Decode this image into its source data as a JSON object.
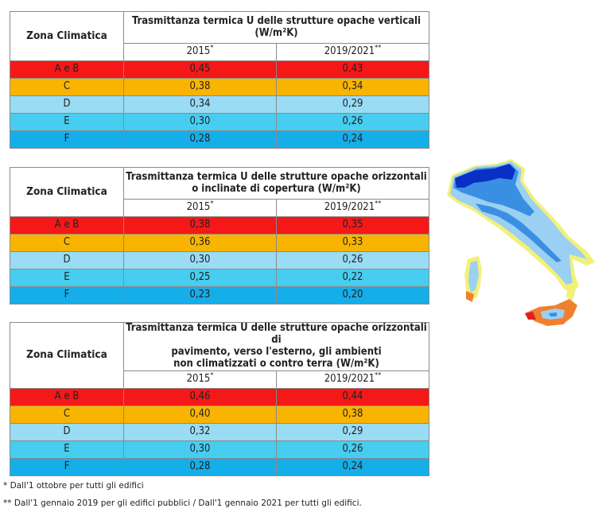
{
  "zone_header": "Zona Climatica",
  "col_2015": "2015",
  "col_2019": "2019/2021",
  "mark_2015": "*",
  "mark_2019": "**",
  "tables": [
    {
      "title_lines": [
        "Trasmittanza termica U delle strutture opache verticali",
        "(W/m²K)"
      ],
      "rows": [
        {
          "zone": "A e B",
          "v2015": "0,45",
          "v2019": "0,43"
        },
        {
          "zone": "C",
          "v2015": "0,38",
          "v2019": "0,34"
        },
        {
          "zone": "D",
          "v2015": "0,34",
          "v2019": "0,29"
        },
        {
          "zone": "E",
          "v2015": "0,30",
          "v2019": "0,26"
        },
        {
          "zone": "F",
          "v2015": "0,28",
          "v2019": "0,24"
        }
      ]
    },
    {
      "title_lines": [
        "Trasmittanza termica U delle strutture opache orizzontali",
        "o inclinate di copertura (W/m²K)"
      ],
      "rows": [
        {
          "zone": "A e B",
          "v2015": "0,38",
          "v2019": "0,35"
        },
        {
          "zone": "C",
          "v2015": "0,36",
          "v2019": "0,33"
        },
        {
          "zone": "D",
          "v2015": "0,30",
          "v2019": "0,26"
        },
        {
          "zone": "E",
          "v2015": "0,25",
          "v2019": "0,22"
        },
        {
          "zone": "F",
          "v2015": "0,23",
          "v2019": "0,20"
        }
      ]
    },
    {
      "title_lines": [
        "Trasmittanza termica U delle strutture opache orizzontali di",
        "pavimento, verso l'esterno, gli ambienti",
        "non climatizzati o contro terra (W/m²K)"
      ],
      "rows": [
        {
          "zone": "A e B",
          "v2015": "0,46",
          "v2019": "0,44"
        },
        {
          "zone": "C",
          "v2015": "0,40",
          "v2019": "0,38"
        },
        {
          "zone": "D",
          "v2015": "0,32",
          "v2019": "0,29"
        },
        {
          "zone": "E",
          "v2015": "0,30",
          "v2019": "0,26"
        },
        {
          "zone": "F",
          "v2015": "0,28",
          "v2019": "0,24"
        }
      ]
    }
  ],
  "notes": {
    "note1": "* Dall'1 ottobre per tutti gli edifici",
    "note2": "** Dall'1 gennaio 2019 per gli edifici pubblici / Dall'1 gennaio 2021 per tutti gli edifici."
  },
  "zone_colors": {
    "A e B": "#f41818",
    "C": "#f8b400",
    "D": "#99dcf4",
    "E": "#47cdf0",
    "F": "#16aee9"
  }
}
